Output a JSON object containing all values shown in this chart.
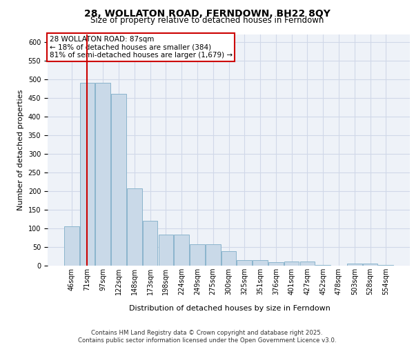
{
  "title_line1": "28, WOLLATON ROAD, FERNDOWN, BH22 8QY",
  "title_line2": "Size of property relative to detached houses in Ferndown",
  "xlabel": "Distribution of detached houses by size in Ferndown",
  "ylabel": "Number of detached properties",
  "categories": [
    "46sqm",
    "71sqm",
    "97sqm",
    "122sqm",
    "148sqm",
    "173sqm",
    "198sqm",
    "224sqm",
    "249sqm",
    "275sqm",
    "300sqm",
    "325sqm",
    "351sqm",
    "376sqm",
    "401sqm",
    "427sqm",
    "452sqm",
    "478sqm",
    "503sqm",
    "528sqm",
    "554sqm"
  ],
  "bar_heights": [
    105,
    490,
    490,
    460,
    207,
    120,
    83,
    83,
    57,
    57,
    38,
    14,
    14,
    9,
    11,
    11,
    1,
    0,
    5,
    5,
    1
  ],
  "bar_color": "#c9d9e8",
  "bar_edge_color": "#8ab4cc",
  "grid_color": "#d0d8e8",
  "background_color": "#eef2f8",
  "red_line_x": 1.0,
  "annotation_title": "28 WOLLATON ROAD: 87sqm",
  "annotation_line2": "← 18% of detached houses are smaller (384)",
  "annotation_line3": "81% of semi-detached houses are larger (1,679) →",
  "annotation_box_color": "#ffffff",
  "annotation_box_edge": "#cc0000",
  "red_line_color": "#cc0000",
  "ylim": [
    0,
    620
  ],
  "yticks": [
    0,
    50,
    100,
    150,
    200,
    250,
    300,
    350,
    400,
    450,
    500,
    550,
    600
  ],
  "footer_line1": "Contains HM Land Registry data © Crown copyright and database right 2025.",
  "footer_line2": "Contains public sector information licensed under the Open Government Licence v3.0."
}
